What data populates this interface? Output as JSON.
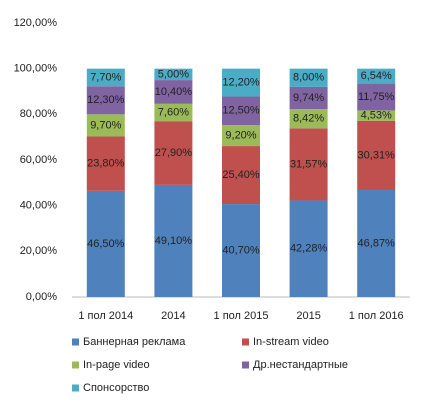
{
  "chart_data": {
    "type": "stacked_bar",
    "categories": [
      "1 пол 2014",
      "2014",
      "1 пол 2015",
      "2015",
      "1 пол 2016"
    ],
    "series": [
      {
        "name": "Баннерная реклама",
        "color": "#4f81bd",
        "values": [
          46.5,
          49.1,
          40.7,
          42.28,
          46.87
        ],
        "value_labels": [
          "46,50%",
          "49,10%",
          "40,70%",
          "42,28%",
          "46,87%"
        ]
      },
      {
        "name": "In-stream video",
        "color": "#c0504d",
        "values": [
          23.8,
          27.9,
          25.4,
          31.57,
          30.31
        ],
        "value_labels": [
          "23,80%",
          "27,90%",
          "25,40%",
          "31,57%",
          "30,31%"
        ]
      },
      {
        "name": "In-page video",
        "color": "#9bbb59",
        "values": [
          9.7,
          7.6,
          9.2,
          8.42,
          4.53
        ],
        "value_labels": [
          "9,70%",
          "7,60%",
          "9,20%",
          "8,42%",
          "4,53%"
        ]
      },
      {
        "name": "Др.нестандартные",
        "color": "#8064a2",
        "values": [
          12.3,
          10.4,
          12.5,
          9.74,
          11.75
        ],
        "value_labels": [
          "12,30%",
          "10,40%",
          "12,50%",
          "9,74%",
          "11,75%"
        ]
      },
      {
        "name": "Спонсорство",
        "color": "#4bacc6",
        "values": [
          7.7,
          5.0,
          12.2,
          8.0,
          6.54
        ],
        "value_labels": [
          "7,70%",
          "5,00%",
          "12,20%",
          "8,00%",
          "6,54%"
        ]
      }
    ],
    "ylim": [
      0,
      120
    ],
    "yticks": [
      {
        "value": 0,
        "label": "0,00%"
      },
      {
        "value": 20,
        "label": "20,00%"
      },
      {
        "value": 40,
        "label": "40,00%"
      },
      {
        "value": 60,
        "label": "60,00%"
      },
      {
        "value": 80,
        "label": "80,00%"
      },
      {
        "value": 100,
        "label": "100,00%"
      },
      {
        "value": 120,
        "label": "120,00%"
      }
    ],
    "legend": "bottom"
  }
}
